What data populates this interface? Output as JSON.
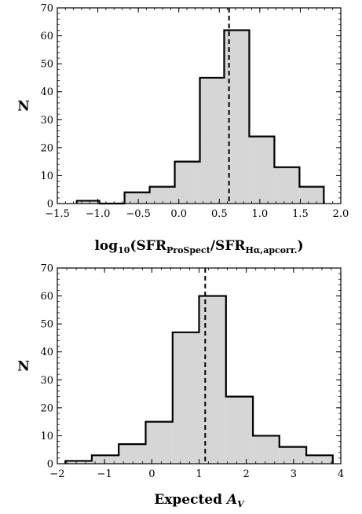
{
  "chart_data": [
    {
      "type": "histogram",
      "ylabel": "N",
      "xlabel": {
        "prefix": "log",
        "prefix_sub": "10",
        "open": "(SFR",
        "sub1": "ProSpect",
        "mid": "/SFR",
        "sub2": "Hα,apcorr.",
        "close": ")"
      },
      "xlim": [
        -1.5,
        2.0
      ],
      "ylim": [
        0,
        70
      ],
      "xticks": [
        -1.5,
        -1.0,
        -0.5,
        0.0,
        0.5,
        1.0,
        1.5,
        2.0
      ],
      "xtick_labels": [
        "−1.5",
        "−1.0",
        "−0.5",
        "0.0",
        "0.5",
        "1.0",
        "1.5",
        "2.0"
      ],
      "yticks": [
        0,
        10,
        20,
        30,
        40,
        50,
        60,
        70
      ],
      "ytick_labels": [
        "0",
        "10",
        "20",
        "30",
        "40",
        "50",
        "60",
        "70"
      ],
      "bin_edges": [
        -1.26,
        -0.98,
        -0.67,
        -0.36,
        -0.05,
        0.26,
        0.56,
        0.87,
        1.18,
        1.49,
        1.79
      ],
      "counts": [
        1,
        0,
        4,
        6,
        15,
        45,
        62,
        24,
        13,
        6
      ],
      "median_line": 0.62,
      "fill_color": "#d6d6d6",
      "edge_color": "#000000"
    },
    {
      "type": "histogram",
      "ylabel": "N",
      "xlabel": {
        "text": "Expected ",
        "var": "A",
        "var_sub": "V"
      },
      "xlim": [
        -2,
        4
      ],
      "ylim": [
        0,
        70
      ],
      "xticks": [
        -2,
        -1,
        0,
        1,
        2,
        3,
        4
      ],
      "xtick_labels": [
        "−2",
        "−1",
        "0",
        "1",
        "2",
        "3",
        "4"
      ],
      "yticks": [
        0,
        10,
        20,
        30,
        40,
        50,
        60,
        70
      ],
      "ytick_labels": [
        "0",
        "10",
        "20",
        "30",
        "40",
        "50",
        "60",
        "70"
      ],
      "bin_edges": [
        -1.83,
        -1.27,
        -0.7,
        -0.13,
        0.44,
        1.0,
        1.57,
        2.14,
        2.7,
        3.27,
        3.83
      ],
      "counts": [
        1,
        3,
        7,
        15,
        47,
        60,
        24,
        10,
        6,
        3
      ],
      "median_line": 1.13,
      "fill_color": "#d6d6d6",
      "edge_color": "#000000"
    }
  ]
}
